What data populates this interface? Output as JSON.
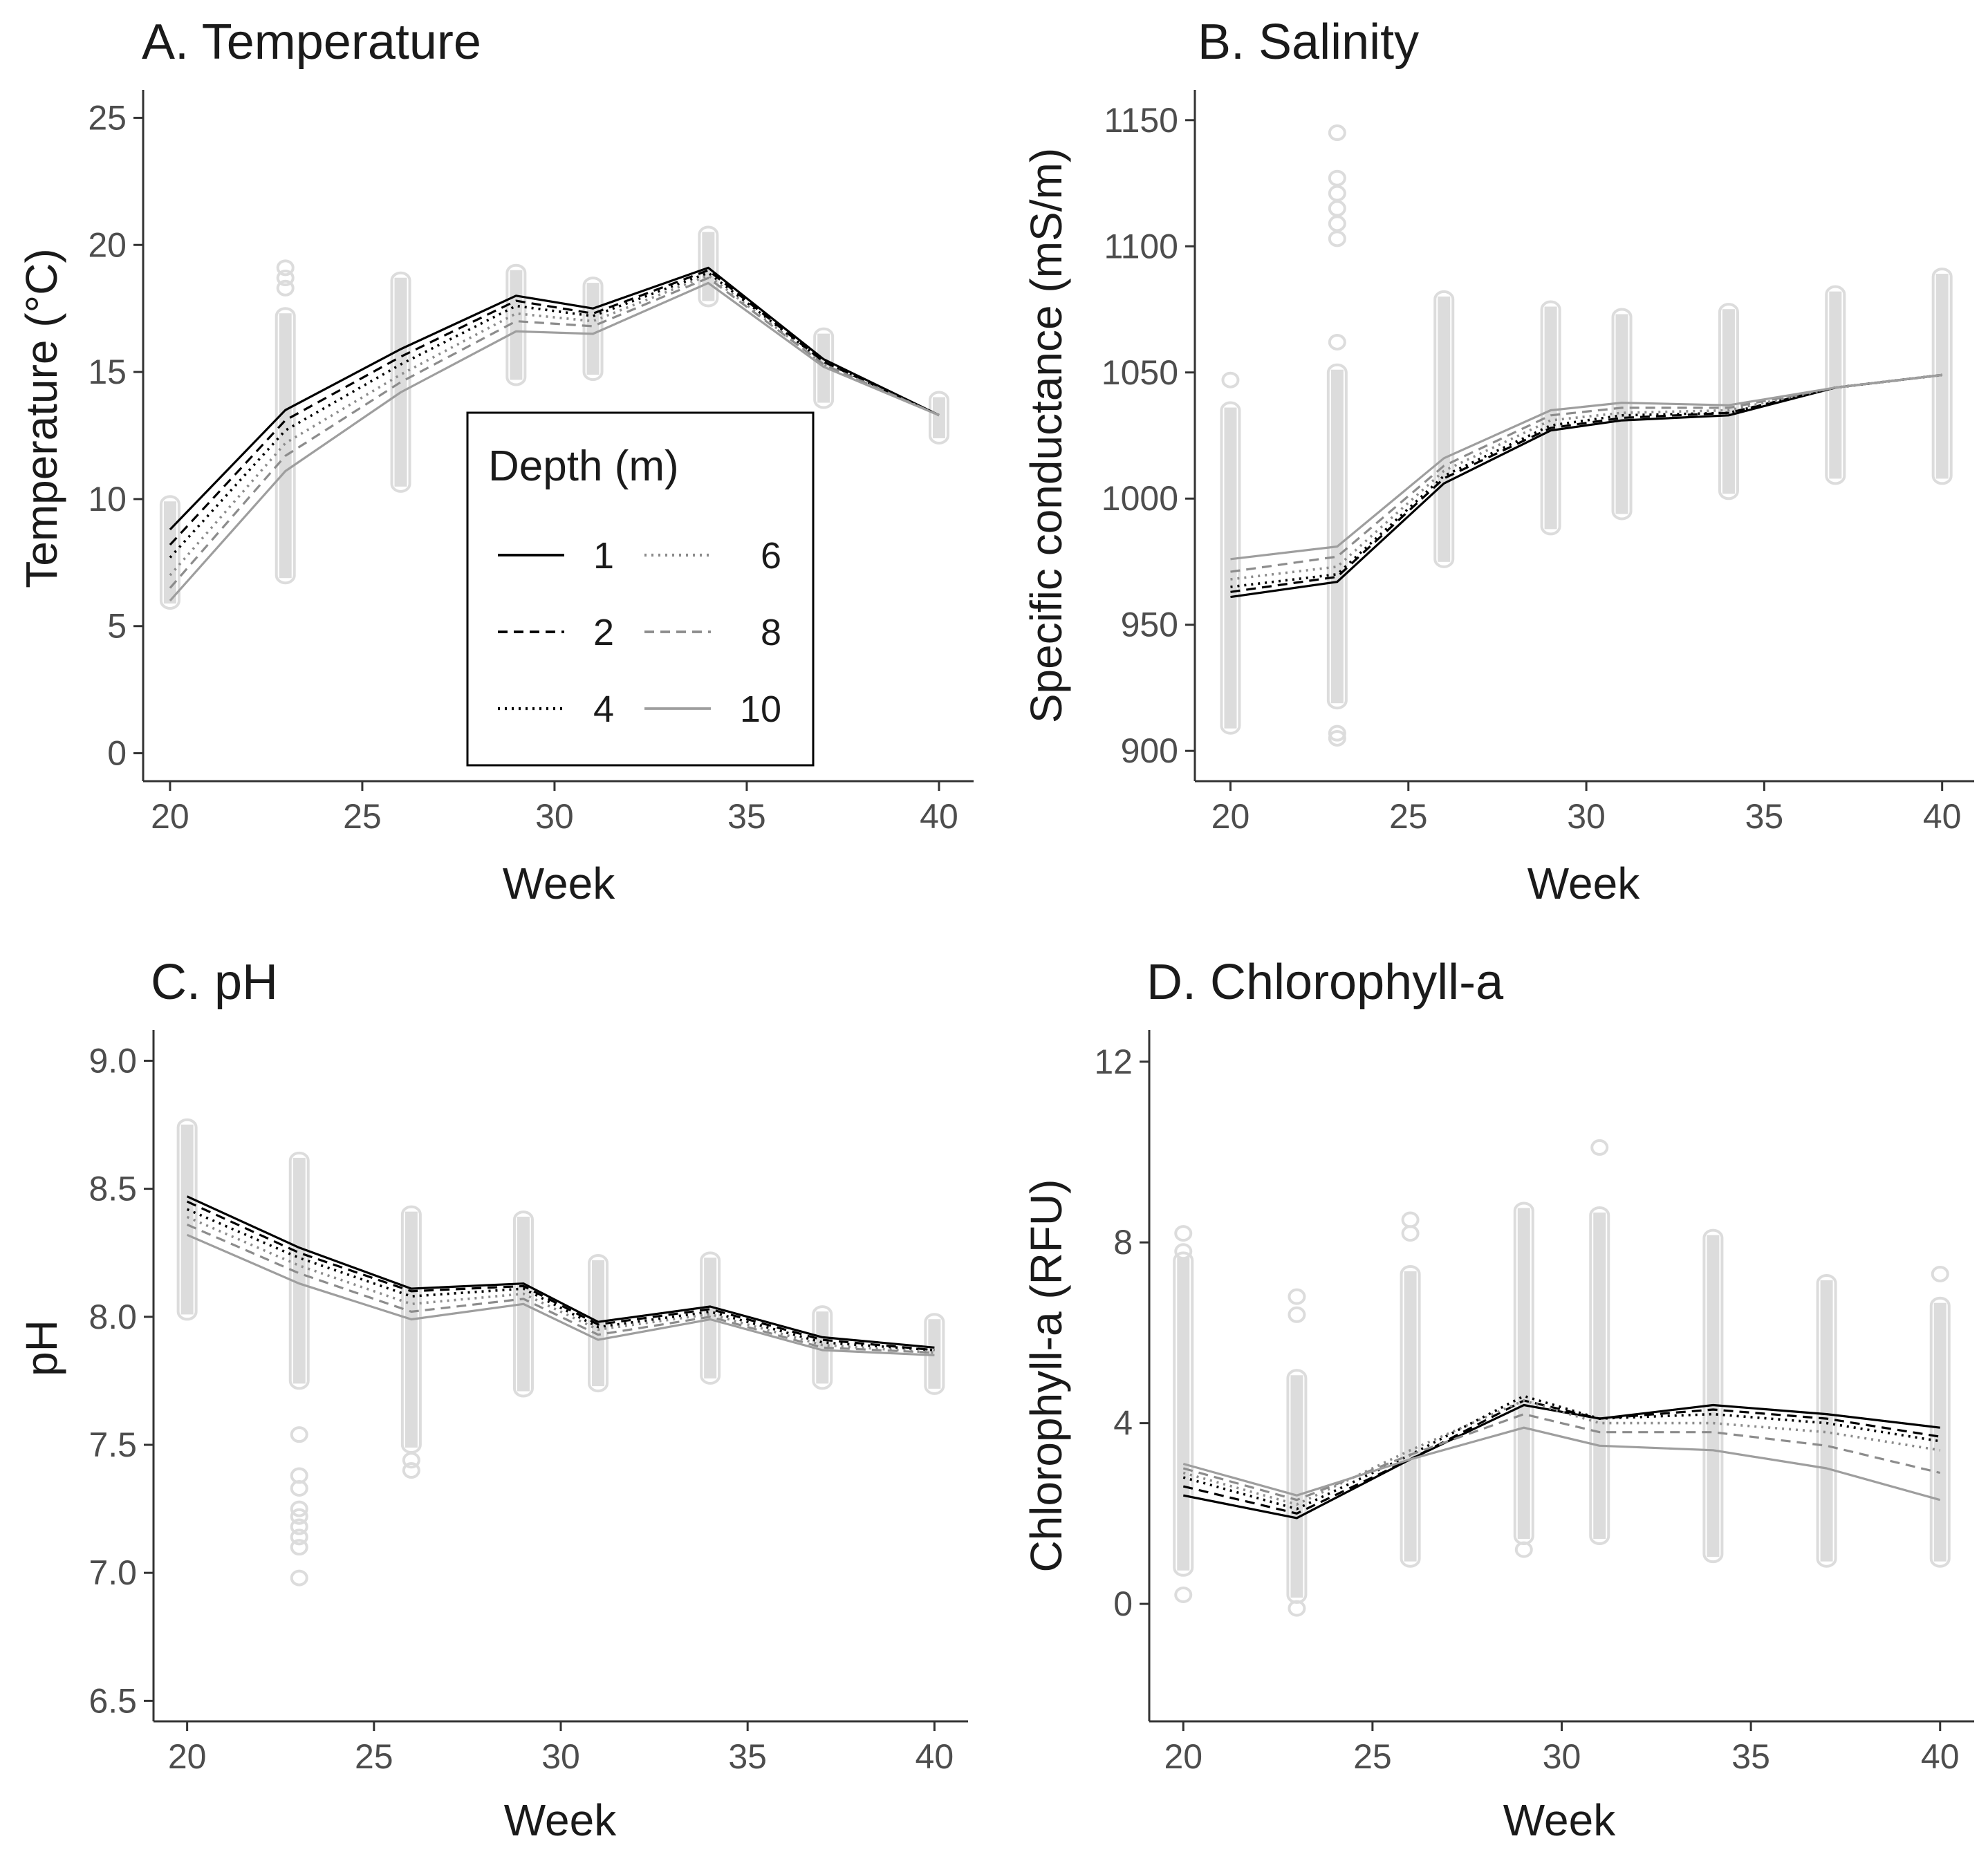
{
  "chart_data": [
    {
      "type": "line",
      "title": "A. Temperature",
      "xlabel": "Week",
      "ylabel": "Temperature (°C)",
      "xlim": [
        19.3,
        40.9
      ],
      "ylim": [
        -1.1,
        26.1
      ],
      "xticks": [
        20,
        25,
        30,
        35,
        40
      ],
      "yticks": [
        0,
        5,
        10,
        15,
        20,
        25
      ],
      "x": [
        20,
        23,
        26,
        29,
        31,
        34,
        37,
        40
      ],
      "series": [
        {
          "name": "1",
          "values": [
            8.8,
            13.5,
            15.9,
            18.0,
            17.5,
            19.1,
            15.5,
            13.3
          ]
        },
        {
          "name": "2",
          "values": [
            8.2,
            13.1,
            15.6,
            17.8,
            17.3,
            19.0,
            15.4,
            13.3
          ]
        },
        {
          "name": "4",
          "values": [
            7.7,
            12.7,
            15.3,
            17.6,
            17.2,
            18.9,
            15.4,
            13.3
          ]
        },
        {
          "name": "6",
          "values": [
            7.0,
            12.2,
            14.9,
            17.3,
            17.0,
            18.8,
            15.3,
            13.3
          ]
        },
        {
          "name": "8",
          "values": [
            6.5,
            11.7,
            14.6,
            17.0,
            16.8,
            18.7,
            15.3,
            13.3
          ]
        },
        {
          "name": "10",
          "values": [
            6.0,
            11.1,
            14.2,
            16.6,
            16.5,
            18.5,
            15.2,
            13.3
          ]
        }
      ],
      "observations": [
        {
          "x": 20,
          "min": 6.0,
          "max": 9.8,
          "outliers": []
        },
        {
          "x": 23,
          "min": 7.0,
          "max": 17.2,
          "outliers": [
            18.3,
            18.7,
            19.1
          ]
        },
        {
          "x": 26,
          "min": 10.6,
          "max": 18.6,
          "outliers": []
        },
        {
          "x": 29,
          "min": 14.8,
          "max": 18.9,
          "outliers": []
        },
        {
          "x": 31,
          "min": 15.0,
          "max": 18.4,
          "outliers": []
        },
        {
          "x": 34,
          "min": 17.9,
          "max": 20.4,
          "outliers": []
        },
        {
          "x": 37,
          "min": 13.9,
          "max": 16.4,
          "outliers": []
        },
        {
          "x": 40,
          "min": 12.5,
          "max": 13.9,
          "outliers": []
        }
      ]
    },
    {
      "type": "line",
      "title": "B. Salinity",
      "xlabel": "Week",
      "ylabel": "Specific conductance (mS/m)",
      "xlim": [
        19.0,
        40.9
      ],
      "ylim": [
        888,
        1162
      ],
      "xticks": [
        20,
        25,
        30,
        35,
        40
      ],
      "yticks": [
        900,
        950,
        1000,
        1050,
        1100,
        1150
      ],
      "x": [
        20,
        23,
        26,
        29,
        31,
        34,
        37,
        40
      ],
      "series": [
        {
          "name": "1",
          "values": [
            961,
            967,
            1006,
            1027,
            1031,
            1033,
            1044,
            1049
          ]
        },
        {
          "name": "2",
          "values": [
            963,
            969,
            1008,
            1028,
            1032,
            1034,
            1044,
            1049
          ]
        },
        {
          "name": "4",
          "values": [
            965,
            970,
            1009,
            1029,
            1033,
            1034,
            1044,
            1049
          ]
        },
        {
          "name": "6",
          "values": [
            968,
            973,
            1011,
            1031,
            1034,
            1035,
            1044,
            1049
          ]
        },
        {
          "name": "8",
          "values": [
            971,
            977,
            1013,
            1033,
            1036,
            1036,
            1044,
            1049
          ]
        },
        {
          "name": "10",
          "values": [
            976,
            981,
            1016,
            1035,
            1038,
            1037,
            1044,
            1049
          ]
        }
      ],
      "observations": [
        {
          "x": 20,
          "min": 910,
          "max": 1035,
          "outliers": [
            1047
          ]
        },
        {
          "x": 23,
          "min": 920,
          "max": 1050,
          "outliers": [
            905,
            907,
            1062,
            1103,
            1109,
            1115,
            1121,
            1127,
            1145
          ]
        },
        {
          "x": 26,
          "min": 976,
          "max": 1079,
          "outliers": []
        },
        {
          "x": 29,
          "min": 989,
          "max": 1075,
          "outliers": []
        },
        {
          "x": 31,
          "min": 995,
          "max": 1072,
          "outliers": []
        },
        {
          "x": 34,
          "min": 1003,
          "max": 1074,
          "outliers": []
        },
        {
          "x": 37,
          "min": 1009,
          "max": 1081,
          "outliers": []
        },
        {
          "x": 40,
          "min": 1009,
          "max": 1088,
          "outliers": []
        }
      ]
    },
    {
      "type": "line",
      "title": "C. pH",
      "xlabel": "Week",
      "ylabel": "pH",
      "xlim": [
        19.1,
        40.9
      ],
      "ylim": [
        6.42,
        9.12
      ],
      "xticks": [
        20,
        25,
        30,
        35,
        40
      ],
      "yticks": [
        6.5,
        7.0,
        7.5,
        8.0,
        8.5,
        9.0
      ],
      "x": [
        20,
        23,
        26,
        29,
        31,
        34,
        37,
        40
      ],
      "series": [
        {
          "name": "1",
          "values": [
            8.47,
            8.27,
            8.11,
            8.13,
            7.98,
            8.04,
            7.92,
            7.88
          ]
        },
        {
          "name": "2",
          "values": [
            8.45,
            8.25,
            8.1,
            8.12,
            7.97,
            8.03,
            7.91,
            7.87
          ]
        },
        {
          "name": "4",
          "values": [
            8.42,
            8.23,
            8.08,
            8.11,
            7.96,
            8.02,
            7.9,
            7.87
          ]
        },
        {
          "name": "6",
          "values": [
            8.39,
            8.2,
            8.05,
            8.09,
            7.95,
            8.01,
            7.89,
            7.86
          ]
        },
        {
          "name": "8",
          "values": [
            8.36,
            8.17,
            8.02,
            8.07,
            7.93,
            8.0,
            7.88,
            7.86
          ]
        },
        {
          "name": "10",
          "values": [
            8.32,
            8.13,
            7.99,
            8.05,
            7.91,
            7.99,
            7.87,
            7.85
          ]
        }
      ],
      "observations": [
        {
          "x": 20,
          "min": 8.02,
          "max": 8.74,
          "outliers": []
        },
        {
          "x": 23,
          "min": 7.75,
          "max": 8.61,
          "outliers": [
            6.98,
            7.1,
            7.14,
            7.18,
            7.22,
            7.25,
            7.33,
            7.38,
            7.54
          ]
        },
        {
          "x": 26,
          "min": 7.5,
          "max": 8.4,
          "outliers": [
            7.4,
            7.44
          ]
        },
        {
          "x": 29,
          "min": 7.72,
          "max": 8.38,
          "outliers": []
        },
        {
          "x": 31,
          "min": 7.74,
          "max": 8.21,
          "outliers": []
        },
        {
          "x": 34,
          "min": 7.77,
          "max": 8.22,
          "outliers": []
        },
        {
          "x": 37,
          "min": 7.75,
          "max": 8.01,
          "outliers": []
        },
        {
          "x": 40,
          "min": 7.73,
          "max": 7.98,
          "outliers": []
        }
      ]
    },
    {
      "type": "line",
      "title": "D. Chlorophyll-a",
      "xlabel": "Week",
      "ylabel": "Chlorophyll-a (RFU)",
      "xlim": [
        19.1,
        40.9
      ],
      "ylim": [
        -2.6,
        12.7
      ],
      "xticks": [
        20,
        25,
        30,
        35,
        40
      ],
      "yticks": [
        0,
        4,
        8,
        12
      ],
      "x": [
        20,
        23,
        26,
        29,
        31,
        34,
        37,
        40
      ],
      "series": [
        {
          "name": "1",
          "values": [
            2.4,
            1.9,
            3.2,
            4.4,
            4.1,
            4.4,
            4.2,
            3.9
          ]
        },
        {
          "name": "2",
          "values": [
            2.6,
            2.0,
            3.2,
            4.5,
            4.1,
            4.3,
            4.1,
            3.7
          ]
        },
        {
          "name": "4",
          "values": [
            2.8,
            2.1,
            3.3,
            4.6,
            4.1,
            4.2,
            4.0,
            3.6
          ]
        },
        {
          "name": "6",
          "values": [
            2.9,
            2.2,
            3.4,
            4.5,
            4.0,
            4.0,
            3.8,
            3.4
          ]
        },
        {
          "name": "8",
          "values": [
            3.0,
            2.3,
            3.3,
            4.2,
            3.8,
            3.8,
            3.5,
            2.9
          ]
        },
        {
          "name": "10",
          "values": [
            3.1,
            2.4,
            3.2,
            3.9,
            3.5,
            3.4,
            3.0,
            2.3
          ]
        }
      ],
      "observations": [
        {
          "x": 20,
          "min": 0.8,
          "max": 7.6,
          "outliers": [
            0.2,
            7.8,
            8.2
          ]
        },
        {
          "x": 23,
          "min": 0.2,
          "max": 5.0,
          "outliers": [
            -0.1,
            6.4,
            6.8
          ]
        },
        {
          "x": 26,
          "min": 1.0,
          "max": 7.3,
          "outliers": [
            8.2,
            8.5
          ]
        },
        {
          "x": 29,
          "min": 1.5,
          "max": 8.7,
          "outliers": [
            1.2
          ]
        },
        {
          "x": 31,
          "min": 1.5,
          "max": 8.6,
          "outliers": [
            10.1
          ]
        },
        {
          "x": 34,
          "min": 1.1,
          "max": 8.1,
          "outliers": []
        },
        {
          "x": 37,
          "min": 1.0,
          "max": 7.1,
          "outliers": []
        },
        {
          "x": 40,
          "min": 1.0,
          "max": 6.6,
          "outliers": [
            7.3
          ]
        }
      ]
    }
  ],
  "legend": {
    "title": "Depth (m)",
    "placement": "inside panel A, center",
    "entries": [
      {
        "label": "1",
        "style": "solid",
        "color": "#000000"
      },
      {
        "label": "6",
        "style": "dotted",
        "color": "#9e9e9e"
      },
      {
        "label": "2",
        "style": "dashed",
        "color": "#000000"
      },
      {
        "label": "8",
        "style": "dashed",
        "color": "#9e9e9e"
      },
      {
        "label": "4",
        "style": "dotted",
        "color": "#000000"
      },
      {
        "label": "10",
        "style": "solid",
        "color": "#9e9e9e"
      }
    ]
  },
  "colors": {
    "observation_points": "#dcdcdc",
    "axis": "#333333",
    "tick_label": "#4d4d4d"
  }
}
